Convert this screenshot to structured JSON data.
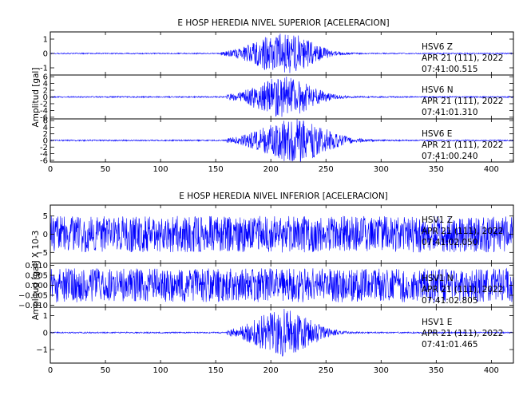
{
  "chart_data": [
    {
      "type": "line",
      "title": "E HOSP HEREDIA NIVEL SUPERIOR [ACELERACION]",
      "ylabel": "Amplitud [gal]",
      "xlim": [
        0,
        420
      ],
      "xticks": [
        0,
        50,
        100,
        150,
        200,
        250,
        300,
        350,
        400
      ],
      "trace_color": "#0000ff",
      "traces": [
        {
          "ylim": [
            -1.5,
            1.5
          ],
          "yticks": [
            -1,
            0,
            1
          ],
          "station": "HSV6 Z",
          "date": "APR 21 (111), 2022",
          "time": "07:41:00.515",
          "envelope": {
            "noise": 0.04,
            "onset": 155,
            "peak_time": 212,
            "peak": 1.4,
            "rise": 22,
            "decay": 22
          }
        },
        {
          "ylim": [
            -6.5,
            6.5
          ],
          "yticks": [
            -6,
            -4,
            -2,
            0,
            2,
            4,
            6
          ],
          "station": "HSV6 N",
          "date": "APR 21 (111), 2022",
          "time": "07:41:01.310",
          "envelope": {
            "noise": 0.2,
            "onset": 160,
            "peak_time": 212,
            "peak": 5.6,
            "rise": 22,
            "decay": 22
          }
        },
        {
          "ylim": [
            -6.5,
            6.5
          ],
          "yticks": [
            -6,
            -4,
            -2,
            0,
            2,
            4,
            6
          ],
          "station": "HSV6 E",
          "date": "APR 21 (111), 2022",
          "time": "07:41:00.240",
          "envelope": {
            "noise": 0.2,
            "onset": 160,
            "peak_time": 222,
            "peak": 6.2,
            "rise": 25,
            "decay": 25
          }
        }
      ]
    },
    {
      "type": "line",
      "title": "E HOSP HEREDIA NIVEL INFERIOR [ACELERACION]",
      "ylabel": "Amplitud [gal] X 10-3",
      "xlim": [
        0,
        420
      ],
      "xticks": [
        0,
        50,
        100,
        150,
        200,
        250,
        300,
        350,
        400
      ],
      "trace_color": "#0000ff",
      "traces": [
        {
          "ylim": [
            -8,
            8
          ],
          "yticks": [
            -5,
            0,
            5
          ],
          "tick_labels": [
            "−5",
            "0",
            "5"
          ],
          "station": "HSV1 Z",
          "date": "APR 21 (111), 2022",
          "time": "07:41:02.050",
          "envelope": {
            "noise": 5.0,
            "onset": 0,
            "peak_time": 0,
            "peak": 0,
            "rise": 1,
            "decay": 1
          }
        },
        {
          "ylim": [
            -0.011,
            0.011
          ],
          "yticks": [
            -0.01,
            -0.005,
            0,
            0.005,
            0.01
          ],
          "tick_labels": [
            "−0.010",
            "−0.005",
            "0.000",
            "0.005",
            "0.010"
          ],
          "station": "HSV1 N",
          "date": "APR 21 (111), 2022",
          "time": "07:41:02.805",
          "envelope": {
            "noise": 0.0085,
            "onset": 0,
            "peak_time": 0,
            "peak": 0,
            "rise": 1,
            "decay": 1
          }
        },
        {
          "ylim": [
            -1.8,
            1.5
          ],
          "yticks": [
            -1,
            0,
            1
          ],
          "tick_labels": [
            "−1",
            "0",
            "1"
          ],
          "station": "HSV1 E",
          "date": "APR 21 (111), 2022",
          "time": "07:41:01.465",
          "envelope": {
            "noise": 0.04,
            "onset": 160,
            "peak_time": 212,
            "peak": 1.3,
            "rise": 22,
            "decay": 22
          }
        }
      ]
    }
  ]
}
